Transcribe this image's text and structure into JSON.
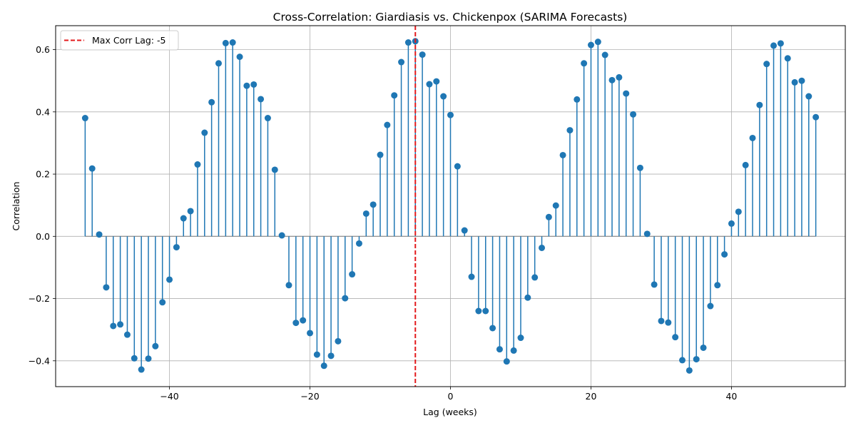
{
  "chart_data": {
    "type": "stem",
    "title": "Cross-Correlation: Giardiasis vs. Chickenpox (SARIMA Forecasts)",
    "xlabel": "Lag (weeks)",
    "ylabel": "Correlation",
    "xlim": [
      -56.2,
      56.2
    ],
    "ylim": [
      -0.483,
      0.677
    ],
    "x_ticks": [
      -40,
      -20,
      0,
      20,
      40
    ],
    "x_tick_labels": [
      "−40",
      "−20",
      "0",
      "20",
      "40"
    ],
    "y_ticks": [
      -0.4,
      -0.2,
      0.0,
      0.2,
      0.4,
      0.6
    ],
    "y_tick_labels": [
      "−0.4",
      "−0.2",
      "0.0",
      "0.2",
      "0.4",
      "0.6"
    ],
    "grid": true,
    "legend_position": "upper-left",
    "stem_color": "#1f77b4",
    "baseline_color": "#808080",
    "series": [
      {
        "lags": [
          -52,
          -51,
          -50,
          -49,
          -48,
          -47,
          -46,
          -45,
          -44,
          -43,
          -42,
          -41,
          -40,
          -39,
          -38,
          -37,
          -36,
          -35,
          -34,
          -33,
          -32,
          -31,
          -30,
          -29,
          -28,
          -27,
          -26,
          -25,
          -24,
          -23,
          -22,
          -21,
          -20,
          -19,
          -18,
          -17,
          -16,
          -15,
          -14,
          -13,
          -12,
          -11,
          -10,
          -9,
          -8,
          -7,
          -6,
          -5,
          -4,
          -3,
          -2,
          -1,
          0,
          1,
          2,
          3,
          4,
          5,
          6,
          7,
          8,
          9,
          10,
          11,
          12,
          13,
          14,
          15,
          16,
          17,
          18,
          19,
          20,
          21,
          22,
          23,
          24,
          25,
          26,
          27,
          28,
          29,
          30,
          31,
          32,
          33,
          34,
          35,
          36,
          37,
          38,
          39,
          40,
          41,
          42,
          43,
          44,
          45,
          46,
          47,
          48,
          49,
          50,
          51,
          52
        ],
        "values": [
          0.38,
          0.218,
          0.006,
          -0.164,
          -0.288,
          -0.283,
          -0.316,
          -0.392,
          -0.428,
          -0.393,
          -0.353,
          -0.212,
          -0.139,
          -0.035,
          0.058,
          0.081,
          0.231,
          0.333,
          0.431,
          0.556,
          0.621,
          0.623,
          0.577,
          0.484,
          0.488,
          0.441,
          0.38,
          0.214,
          0.003,
          -0.157,
          -0.278,
          -0.27,
          -0.311,
          -0.38,
          -0.416,
          -0.384,
          -0.337,
          -0.199,
          -0.122,
          -0.023,
          0.073,
          0.102,
          0.262,
          0.358,
          0.453,
          0.56,
          0.623,
          0.627,
          0.584,
          0.489,
          0.498,
          0.45,
          0.39,
          0.225,
          0.019,
          -0.13,
          -0.24,
          -0.24,
          -0.295,
          -0.363,
          -0.402,
          -0.367,
          -0.326,
          -0.197,
          -0.132,
          -0.037,
          0.062,
          0.099,
          0.261,
          0.341,
          0.44,
          0.556,
          0.615,
          0.625,
          0.583,
          0.502,
          0.511,
          0.459,
          0.392,
          0.22,
          0.008,
          -0.155,
          -0.272,
          -0.277,
          -0.324,
          -0.398,
          -0.431,
          -0.395,
          -0.358,
          -0.224,
          -0.157,
          -0.058,
          0.041,
          0.079,
          0.229,
          0.316,
          0.422,
          0.554,
          0.613,
          0.62,
          0.572,
          0.495,
          0.5,
          0.45,
          0.383
        ]
      }
    ],
    "reference_line": {
      "x": -5,
      "label": "Max Corr Lag: -5",
      "color": "#e31a1c",
      "style": "dashed"
    }
  }
}
